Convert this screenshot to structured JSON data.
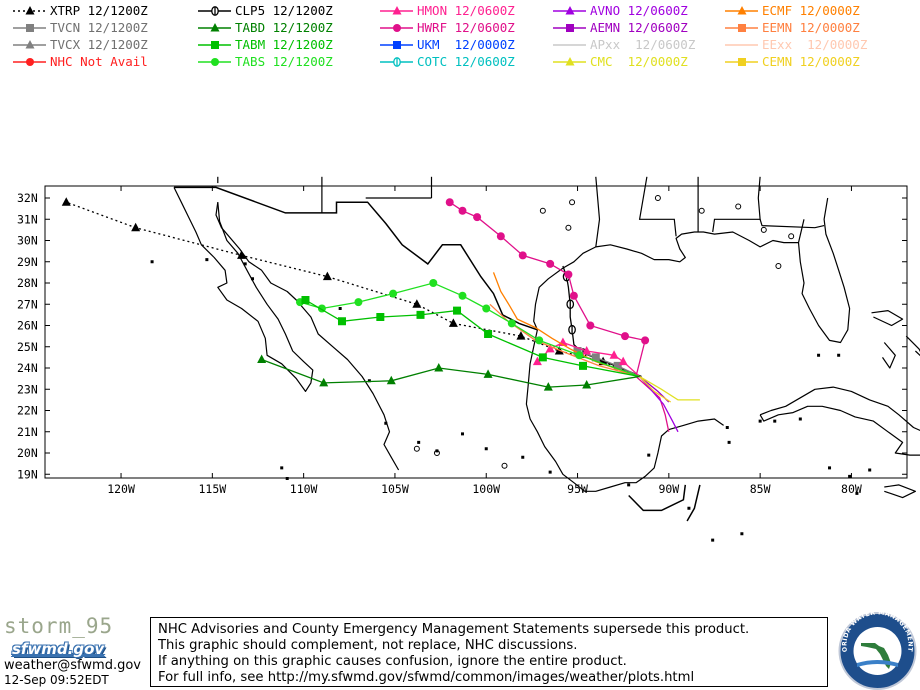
{
  "legend": [
    {
      "label": "XTRP 12/1200Z",
      "color": "#000000",
      "marker": "triangle",
      "line": "dotted"
    },
    {
      "label": "TVCN 12/1200Z",
      "color": "#808080",
      "marker": "square",
      "line": "solid"
    },
    {
      "label": "TVCX 12/1200Z",
      "color": "#808080",
      "marker": "triangle",
      "line": "solid"
    },
    {
      "label": "NHC Not Avail",
      "color": "#ff2020",
      "marker": "circle",
      "line": "solid"
    },
    {
      "label": "CLP5 12/1200Z",
      "color": "#000000",
      "marker": "clp",
      "line": "solid"
    },
    {
      "label": "TABD 12/1200Z",
      "color": "#008000",
      "marker": "triangle",
      "line": "solid"
    },
    {
      "label": "TABM 12/1200Z",
      "color": "#00c000",
      "marker": "square",
      "line": "solid"
    },
    {
      "label": "TABS 12/1200Z",
      "color": "#20e020",
      "marker": "circle",
      "line": "solid"
    },
    {
      "label": "HMON 12/0600Z",
      "color": "#ff2090",
      "marker": "triangle",
      "line": "solid"
    },
    {
      "label": "HWRF 12/0600Z",
      "color": "#e0108a",
      "marker": "circle",
      "line": "solid"
    },
    {
      "label": "UKM  12/0000Z",
      "color": "#0040ff",
      "marker": "square",
      "line": "solid"
    },
    {
      "label": "COTC 12/0600Z",
      "color": "#00c0c0",
      "marker": "clp",
      "line": "solid"
    },
    {
      "label": "AVNO 12/0600Z",
      "color": "#a000e0",
      "marker": "triangle",
      "line": "solid"
    },
    {
      "label": "AEMN 12/0600Z",
      "color": "#a000c0",
      "marker": "square",
      "line": "solid"
    },
    {
      "label": "APxx  12/0600Z",
      "color": "#c8c8c8",
      "marker": "none",
      "line": "solid"
    },
    {
      "label": "CMC  12/0000Z",
      "color": "#e0e020",
      "marker": "triangle",
      "line": "solid"
    },
    {
      "label": "ECMF 12/0000Z",
      "color": "#ff8000",
      "marker": "triangle",
      "line": "solid"
    },
    {
      "label": "EEMN 12/0000Z",
      "color": "#ff8040",
      "marker": "square",
      "line": "solid"
    },
    {
      "label": "EExx  12/0000Z",
      "color": "#ffc8b0",
      "marker": "none",
      "line": "solid"
    },
    {
      "label": "CEMN 12/0000Z",
      "color": "#f0d020",
      "marker": "square",
      "line": "solid"
    }
  ],
  "map": {
    "lat_ticks": [
      "32N",
      "31N",
      "30N",
      "29N",
      "28N",
      "27N",
      "26N",
      "25N",
      "24N",
      "23N",
      "22N",
      "21N",
      "20N",
      "19N"
    ],
    "lon_ticks": [
      "120W",
      "115W",
      "110W",
      "105W",
      "100W",
      "95W",
      "90W",
      "85W",
      "80W"
    ],
    "tracks": [
      {
        "model": "XTRP",
        "color": "#000000",
        "dash": "2,3",
        "marker": "triangle",
        "marker_every": 1,
        "points": [
          [
            91.7,
            23.6
          ],
          [
            93.6,
            24.3
          ],
          [
            96.0,
            24.8
          ],
          [
            98.1,
            25.5
          ],
          [
            101.8,
            26.1
          ],
          [
            103.8,
            27.0
          ],
          [
            108.7,
            28.3
          ],
          [
            113.4,
            29.3
          ],
          [
            119.2,
            30.6
          ],
          [
            123.0,
            31.8
          ]
        ]
      },
      {
        "model": "CLP5",
        "color": "#000000",
        "dash": "",
        "marker": "clp",
        "marker_every": 2,
        "points": [
          [
            91.5,
            23.6
          ],
          [
            93.5,
            24.3
          ],
          [
            94.7,
            24.7
          ],
          [
            95.2,
            25.1
          ],
          [
            95.3,
            25.8
          ],
          [
            95.4,
            26.4
          ],
          [
            95.4,
            27.0
          ],
          [
            95.5,
            27.8
          ],
          [
            95.6,
            28.3
          ],
          [
            95.8,
            28.8
          ]
        ]
      },
      {
        "model": "TVCN",
        "color": "#808080",
        "dash": "",
        "marker": "square",
        "marker_every": 1,
        "points": [
          [
            91.6,
            23.6
          ],
          [
            92.8,
            24.1
          ],
          [
            94.0,
            24.5
          ],
          [
            95.0,
            24.8
          ]
        ]
      },
      {
        "model": "HMON",
        "color": "#ff2090",
        "dash": "",
        "marker": "triangle",
        "marker_every": 1,
        "points": [
          [
            91.6,
            23.6
          ],
          [
            92.5,
            24.3
          ],
          [
            93.0,
            24.6
          ],
          [
            94.5,
            24.8
          ],
          [
            95.8,
            25.2
          ],
          [
            96.5,
            24.9
          ],
          [
            97.2,
            24.3
          ]
        ]
      },
      {
        "model": "HWRF",
        "color": "#e0108a",
        "dash": "",
        "marker": "circle",
        "marker_every": 1,
        "points": [
          [
            91.8,
            23.6
          ],
          [
            91.3,
            25.3
          ],
          [
            92.4,
            25.5
          ],
          [
            94.3,
            26.0
          ],
          [
            95.2,
            27.4
          ],
          [
            95.5,
            28.4
          ],
          [
            96.5,
            28.9
          ],
          [
            98.0,
            29.3
          ],
          [
            99.2,
            30.2
          ],
          [
            100.5,
            31.1
          ],
          [
            101.3,
            31.4
          ],
          [
            102.0,
            31.8
          ]
        ]
      },
      {
        "model": "HWRF-tail",
        "color": "#e0108a",
        "dash": "",
        "marker": "none",
        "marker_every": 0,
        "points": [
          [
            91.8,
            23.6
          ],
          [
            90.5,
            22.6
          ],
          [
            90.2,
            21.8
          ],
          [
            90.0,
            21.0
          ]
        ]
      },
      {
        "model": "AVNO",
        "color": "#a000e0",
        "dash": "",
        "marker": "none",
        "marker_every": 0,
        "points": [
          [
            91.6,
            23.6
          ],
          [
            90.3,
            22.3
          ],
          [
            89.8,
            21.5
          ],
          [
            89.5,
            21.0
          ]
        ]
      },
      {
        "model": "AEMN",
        "color": "#a000c0",
        "dash": "",
        "marker": "none",
        "marker_every": 0,
        "points": [
          [
            91.6,
            23.6
          ],
          [
            90.6,
            22.9
          ],
          [
            90.0,
            22.4
          ]
        ]
      },
      {
        "model": "CMC",
        "color": "#e0e020",
        "dash": "",
        "marker": "none",
        "marker_every": 0,
        "points": [
          [
            91.6,
            23.6
          ],
          [
            90.4,
            23.0
          ],
          [
            89.5,
            22.5
          ],
          [
            88.3,
            22.5
          ]
        ]
      },
      {
        "model": "CEMN",
        "color": "#f0d020",
        "dash": "",
        "marker": "none",
        "marker_every": 0,
        "points": [
          [
            91.6,
            23.6
          ],
          [
            90.8,
            22.9
          ],
          [
            89.9,
            22.4
          ]
        ]
      },
      {
        "model": "ECMF",
        "color": "#ff8000",
        "dash": "",
        "marker": "none",
        "marker_every": 0,
        "points": [
          [
            91.6,
            23.6
          ],
          [
            94.0,
            24.3
          ],
          [
            95.4,
            24.9
          ],
          [
            96.4,
            25.4
          ],
          [
            97.3,
            25.9
          ],
          [
            98.3,
            26.3
          ],
          [
            98.7,
            26.9
          ],
          [
            99.2,
            27.6
          ],
          [
            99.6,
            28.5
          ]
        ]
      },
      {
        "model": "EEMN",
        "color": "#ff8040",
        "dash": "",
        "marker": "none",
        "marker_every": 0,
        "points": [
          [
            91.6,
            23.6
          ],
          [
            93.8,
            24.1
          ],
          [
            95.6,
            24.7
          ],
          [
            97.3,
            25.3
          ],
          [
            98.8,
            26.2
          ],
          [
            99.8,
            27.0
          ]
        ]
      },
      {
        "model": "TABS",
        "color": "#20e020",
        "dash": "",
        "marker": "circle",
        "marker_every": 1,
        "points": [
          [
            91.6,
            23.6
          ],
          [
            94.9,
            24.6
          ],
          [
            97.1,
            25.3
          ],
          [
            98.6,
            26.1
          ],
          [
            100.0,
            26.8
          ],
          [
            101.3,
            27.4
          ],
          [
            102.9,
            28.0
          ],
          [
            105.1,
            27.5
          ],
          [
            107.0,
            27.1
          ],
          [
            109.0,
            26.8
          ],
          [
            110.2,
            27.1
          ]
        ]
      },
      {
        "model": "TABM",
        "color": "#00c000",
        "dash": "",
        "marker": "square",
        "marker_every": 1,
        "points": [
          [
            91.6,
            23.6
          ],
          [
            94.7,
            24.1
          ],
          [
            96.9,
            24.5
          ],
          [
            99.9,
            25.6
          ],
          [
            101.6,
            26.7
          ],
          [
            103.6,
            26.5
          ],
          [
            105.8,
            26.4
          ],
          [
            107.9,
            26.2
          ],
          [
            109.9,
            27.2
          ]
        ]
      },
      {
        "model": "TABD",
        "color": "#008000",
        "dash": "",
        "marker": "triangle",
        "marker_every": 1,
        "points": [
          [
            91.6,
            23.6
          ],
          [
            94.5,
            23.2
          ],
          [
            96.6,
            23.1
          ],
          [
            99.9,
            23.7
          ],
          [
            102.6,
            24.0
          ],
          [
            105.2,
            23.4
          ],
          [
            108.9,
            23.3
          ],
          [
            112.3,
            24.4
          ]
        ]
      }
    ]
  },
  "footer": {
    "storm_name": "storm_95",
    "logo_text": "sfwmd.gov",
    "email": "weather@sfwmd.gov",
    "timestamp": "12-Sep 09:52EDT",
    "disclaimer": [
      "NHC Advisories and County Emergency Management Statements supersede this product.",
      "This graphic should complement, not replace, NHC discussions.",
      "If anything on this graphic causes confusion, ignore the entire product.",
      "For full info, see   http://my.sfwmd.gov/sfwmd/common/images/weather/plots.html"
    ],
    "seal_text": "SOUTH FLORIDA WATER MANAGEMENT DISTRICT"
  }
}
